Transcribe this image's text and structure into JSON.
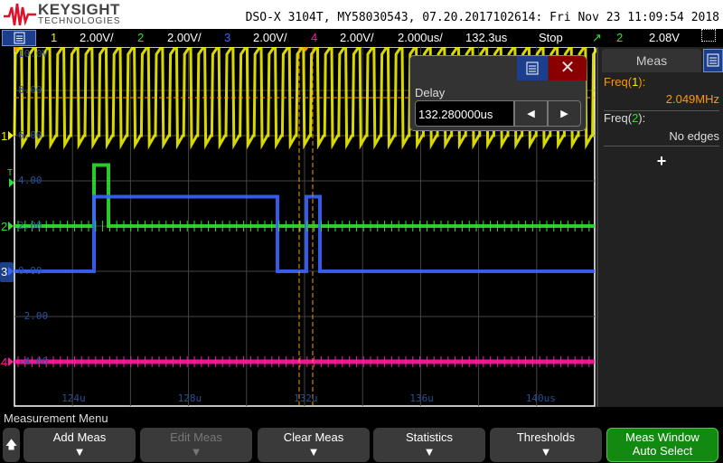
{
  "header": {
    "brand": "KEYSIGHT",
    "brand_sub": "TECHNOLOGIES",
    "instrument_id": "DSO-X 3104T, MY58030543, 07.20.2017102614: Fri Nov 23 11:09:54 2018"
  },
  "status_bar": {
    "channels": [
      {
        "num": "1",
        "scale": "2.00V/",
        "color": "#f0f000"
      },
      {
        "num": "2",
        "scale": "2.00V/",
        "color": "#30e030"
      },
      {
        "num": "3",
        "scale": "2.00V/",
        "color": "#3a64ff"
      },
      {
        "num": "4",
        "scale": "2.00V/",
        "color": "#ff1aa0"
      }
    ],
    "timebase": "2.000us/",
    "delay": "132.3us",
    "run_state": "Stop",
    "trigger_source": "2",
    "trigger_level": "2.08V"
  },
  "graticule": {
    "v_labels": [
      "10.0V",
      "8.00",
      "6.00",
      "4.00",
      "2.00",
      "0.00",
      "-2.00",
      "-4.00"
    ],
    "t_labels": [
      "124u",
      "128u",
      "132u",
      "136u",
      "140us"
    ],
    "trigger_marker": "T"
  },
  "channel_markers": [
    "1",
    "2",
    "3",
    "4"
  ],
  "delay_dialog": {
    "label": "Delay",
    "value": "132.280000us"
  },
  "meas_panel": {
    "tab": "Meas",
    "items": [
      {
        "name": "Freq(",
        "src": "1",
        "end": "):",
        "value": "2.049MHz"
      },
      {
        "name": "Freq(",
        "src": "2",
        "end": "):",
        "value": "No edges"
      }
    ],
    "add": "+"
  },
  "softkeys": {
    "menu_title": "Measurement Menu",
    "keys": [
      {
        "label": "Add Meas",
        "enabled": true
      },
      {
        "label": "Edit Meas",
        "enabled": false
      },
      {
        "label": "Clear Meas",
        "enabled": true
      },
      {
        "label": "Statistics",
        "enabled": true
      },
      {
        "label": "Thresholds",
        "enabled": true
      }
    ],
    "meas_window": {
      "line1": "Meas Window",
      "line2": "Auto Select"
    }
  },
  "colors": {
    "ch1": "#f0f000",
    "ch2": "#30e030",
    "ch3": "#3a64ff",
    "ch4": "#ff1aa0",
    "accent": "#ff9900"
  }
}
